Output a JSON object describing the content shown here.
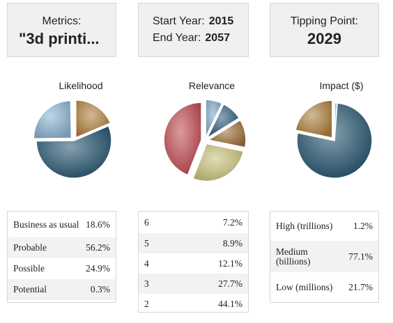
{
  "metrics": {
    "label": "Metrics:",
    "value": "\"3d printi..."
  },
  "years": {
    "start_label": "Start Year:",
    "start_value": "2015",
    "end_label": "End Year:",
    "end_value": "2057"
  },
  "tipping": {
    "label": "Tipping Point:",
    "value": "2029"
  },
  "charts": {
    "likelihood": {
      "title": "Likelihood"
    },
    "relevance": {
      "title": "Relevance"
    },
    "impact": {
      "title": "Impact ($)"
    }
  },
  "tables": {
    "likelihood": [
      {
        "name": "Business as usual",
        "pct": "18.6%"
      },
      {
        "name": "Probable",
        "pct": "56.2%"
      },
      {
        "name": "Possible",
        "pct": "24.9%"
      },
      {
        "name": "Potential",
        "pct": "0.3%"
      }
    ],
    "relevance": [
      {
        "name": "6",
        "pct": "7.2%"
      },
      {
        "name": "5",
        "pct": "8.9%"
      },
      {
        "name": "4",
        "pct": "12.1%"
      },
      {
        "name": "3",
        "pct": "27.7%"
      },
      {
        "name": "2",
        "pct": "44.1%"
      }
    ],
    "impact": [
      {
        "name": "High (trillions)",
        "pct": "1.2%"
      },
      {
        "name": "Medium (billions)",
        "pct": "77.1%"
      },
      {
        "name": "Low (millions)",
        "pct": "21.7%"
      }
    ]
  },
  "chart_data": [
    {
      "type": "pie",
      "title": "Likelihood",
      "categories": [
        "Business as usual",
        "Probable",
        "Possible",
        "Potential"
      ],
      "values": [
        18.6,
        56.2,
        24.9,
        0.3
      ],
      "colors": [
        "#b07f3a",
        "#24546f",
        "#8bb4d3",
        "#c3d6e4"
      ]
    },
    {
      "type": "pie",
      "title": "Relevance",
      "categories": [
        "6",
        "5",
        "4",
        "3",
        "2"
      ],
      "values": [
        7.2,
        8.9,
        12.1,
        27.7,
        44.1
      ],
      "colors": [
        "#7fa8c8",
        "#2c5a78",
        "#9c6e38",
        "#c9c27a",
        "#c04a50"
      ]
    },
    {
      "type": "pie",
      "title": "Impact ($)",
      "categories": [
        "High (trillions)",
        "Medium (billions)",
        "Low (millions)"
      ],
      "values": [
        1.2,
        77.1,
        21.7
      ],
      "colors": [
        "#a8c7de",
        "#24546f",
        "#ad7f3d"
      ]
    }
  ]
}
